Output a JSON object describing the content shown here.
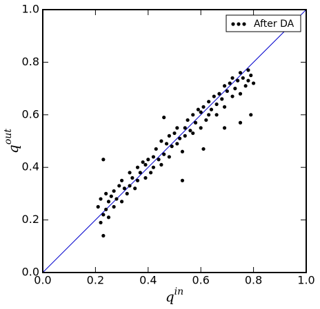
{
  "chart_data": {
    "type": "scatter",
    "xlabel": {
      "base": "q",
      "sup": "in"
    },
    "ylabel": {
      "base": "q",
      "sup": "out"
    },
    "x": [
      0.21,
      0.22,
      0.22,
      0.23,
      0.23,
      0.24,
      0.24,
      0.25,
      0.25,
      0.26,
      0.27,
      0.27,
      0.28,
      0.29,
      0.3,
      0.3,
      0.31,
      0.32,
      0.33,
      0.33,
      0.34,
      0.35,
      0.36,
      0.36,
      0.37,
      0.38,
      0.39,
      0.39,
      0.4,
      0.41,
      0.42,
      0.42,
      0.43,
      0.44,
      0.45,
      0.45,
      0.46,
      0.47,
      0.48,
      0.48,
      0.49,
      0.5,
      0.51,
      0.51,
      0.52,
      0.53,
      0.54,
      0.54,
      0.55,
      0.56,
      0.57,
      0.57,
      0.58,
      0.59,
      0.6,
      0.6,
      0.61,
      0.62,
      0.63,
      0.63,
      0.64,
      0.65,
      0.66,
      0.66,
      0.67,
      0.68,
      0.69,
      0.69,
      0.7,
      0.71,
      0.72,
      0.72,
      0.73,
      0.74,
      0.75,
      0.75,
      0.76,
      0.77,
      0.78,
      0.78,
      0.79,
      0.8,
      0.23,
      0.46,
      0.53,
      0.61,
      0.69,
      0.75,
      0.79
    ],
    "series": [
      {
        "name": "After DA",
        "color": "#000000",
        "values": [
          0.25,
          0.19,
          0.28,
          0.14,
          0.22,
          0.3,
          0.24,
          0.27,
          0.21,
          0.29,
          0.31,
          0.25,
          0.28,
          0.33,
          0.27,
          0.35,
          0.32,
          0.3,
          0.38,
          0.33,
          0.36,
          0.32,
          0.4,
          0.35,
          0.38,
          0.42,
          0.36,
          0.41,
          0.43,
          0.38,
          0.44,
          0.4,
          0.47,
          0.43,
          0.41,
          0.5,
          0.45,
          0.49,
          0.44,
          0.52,
          0.48,
          0.53,
          0.49,
          0.55,
          0.51,
          0.46,
          0.55,
          0.52,
          0.58,
          0.54,
          0.53,
          0.6,
          0.57,
          0.62,
          0.55,
          0.61,
          0.63,
          0.58,
          0.65,
          0.6,
          0.62,
          0.67,
          0.64,
          0.6,
          0.68,
          0.66,
          0.71,
          0.63,
          0.69,
          0.72,
          0.67,
          0.74,
          0.7,
          0.73,
          0.76,
          0.68,
          0.74,
          0.71,
          0.77,
          0.73,
          0.75,
          0.72,
          0.43,
          0.59,
          0.35,
          0.47,
          0.55,
          0.57,
          0.6
        ]
      }
    ],
    "diagonal": {
      "x": [
        0,
        1
      ],
      "values": [
        0,
        1
      ],
      "color": "#0000cc"
    },
    "xlim": [
      0,
      1
    ],
    "ylim": [
      0,
      1
    ],
    "xticks": [
      {
        "value": 0,
        "label": "0.0"
      },
      0.2,
      0.4,
      0.6,
      0.8,
      {
        "value": 1,
        "label": "1.0"
      }
    ],
    "yticks": [
      {
        "value": 0,
        "label": "0.0"
      },
      0.2,
      0.4,
      0.6,
      0.8,
      {
        "value": 1,
        "label": "1.0"
      }
    ],
    "legend": "upper right"
  }
}
